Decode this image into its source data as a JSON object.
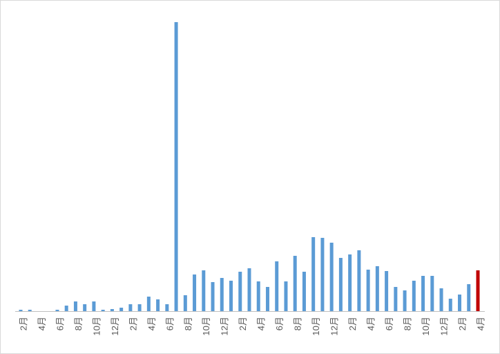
{
  "chart_data": {
    "type": "bar",
    "categories": [
      "2月",
      null,
      "4月",
      null,
      "6月",
      null,
      "8月",
      null,
      "10月",
      null,
      "12月",
      null,
      "2月",
      null,
      "4月",
      null,
      "6月",
      null,
      "8月",
      null,
      "10月",
      null,
      "12月",
      null,
      "2月",
      null,
      "4月",
      null,
      "6月",
      null,
      "8月",
      null,
      "10月",
      null,
      "12月",
      null,
      "2月",
      null,
      "4月",
      null,
      "6月",
      null,
      "8月",
      null,
      "10月",
      null,
      "12月",
      null,
      "2月",
      null,
      "4月"
    ],
    "values": [
      2,
      2,
      0,
      0,
      2,
      8,
      14,
      10,
      14,
      2,
      3,
      5,
      10,
      10,
      21,
      17,
      10,
      418,
      23,
      53,
      59,
      42,
      48,
      44,
      57,
      62,
      43,
      35,
      72,
      43,
      80,
      57,
      107,
      106,
      99,
      77,
      82,
      88,
      60,
      65,
      58,
      35,
      30,
      44,
      51,
      51,
      33,
      18,
      24,
      39,
      59
    ],
    "colors": [
      "#5b9bd5",
      "#5b9bd5",
      "#5b9bd5",
      "#5b9bd5",
      "#5b9bd5",
      "#5b9bd5",
      "#5b9bd5",
      "#5b9bd5",
      "#5b9bd5",
      "#5b9bd5",
      "#5b9bd5",
      "#5b9bd5",
      "#5b9bd5",
      "#5b9bd5",
      "#5b9bd5",
      "#5b9bd5",
      "#5b9bd5",
      "#5b9bd5",
      "#5b9bd5",
      "#5b9bd5",
      "#5b9bd5",
      "#5b9bd5",
      "#5b9bd5",
      "#5b9bd5",
      "#5b9bd5",
      "#5b9bd5",
      "#5b9bd5",
      "#5b9bd5",
      "#5b9bd5",
      "#5b9bd5",
      "#5b9bd5",
      "#5b9bd5",
      "#5b9bd5",
      "#5b9bd5",
      "#5b9bd5",
      "#5b9bd5",
      "#5b9bd5",
      "#5b9bd5",
      "#5b9bd5",
      "#5b9bd5",
      "#5b9bd5",
      "#5b9bd5",
      "#5b9bd5",
      "#5b9bd5",
      "#5b9bd5",
      "#5b9bd5",
      "#5b9bd5",
      "#5b9bd5",
      "#5b9bd5",
      "#5b9bd5",
      "#c00000"
    ],
    "ylim": [
      0,
      418
    ]
  }
}
